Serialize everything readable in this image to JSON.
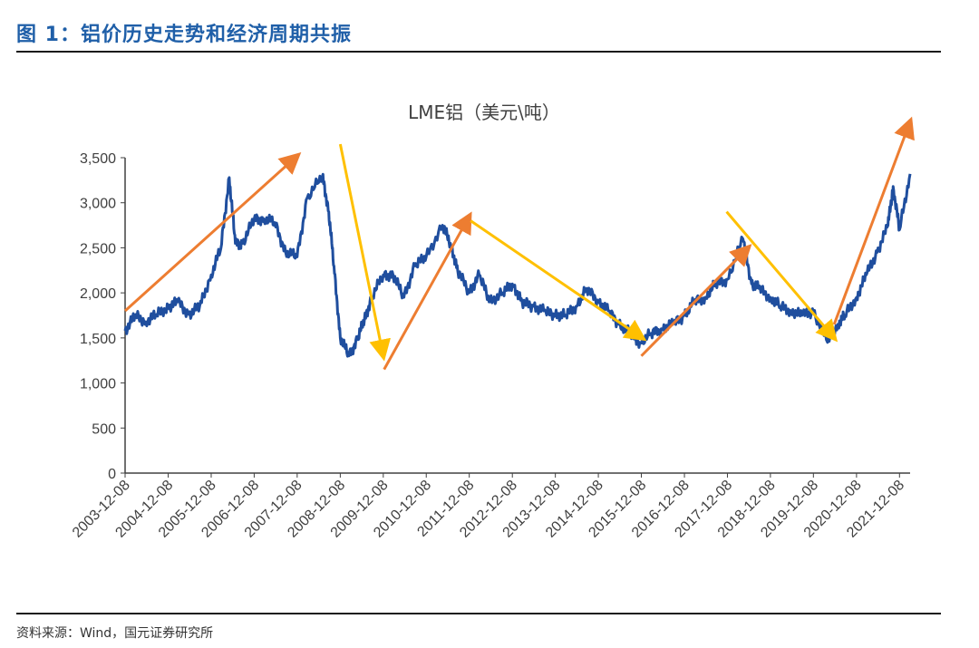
{
  "figure": {
    "title": "图 1：铝价历史走势和经济周期共振",
    "source": "资料来源：Wind，国元证券研究所"
  },
  "chart_data": {
    "type": "line",
    "title": "LME铝（美元\\吨）",
    "xlabel": "",
    "ylabel": "",
    "ylim": [
      0,
      3500
    ],
    "yticks": [
      0,
      500,
      1000,
      1500,
      2000,
      2500,
      3000,
      3500
    ],
    "ytick_labels": [
      "0",
      "500",
      "1,000",
      "1,500",
      "2,000",
      "2,500",
      "3,000",
      "3,500"
    ],
    "xlim": [
      "2003-12-08",
      "2022-03-08"
    ],
    "xtick_labels": [
      "2003-12-08",
      "2004-12-08",
      "2005-12-08",
      "2006-12-08",
      "2007-12-08",
      "2008-12-08",
      "2009-12-08",
      "2010-12-08",
      "2011-12-08",
      "2012-12-08",
      "2013-12-08",
      "2014-12-08",
      "2015-12-08",
      "2016-12-08",
      "2017-12-08",
      "2018-12-08",
      "2019-12-08",
      "2020-12-08",
      "2021-12-08"
    ],
    "grid": false,
    "legend": "none",
    "series": [
      {
        "name": "LME铝",
        "color": "#1f4e9e",
        "x": [
          "2003-12-08",
          "2004-03-01",
          "2004-06-01",
          "2004-09-01",
          "2004-12-08",
          "2005-03-01",
          "2005-06-01",
          "2005-09-01",
          "2005-12-08",
          "2006-03-01",
          "2006-05-10",
          "2006-07-01",
          "2006-09-01",
          "2006-12-08",
          "2007-03-01",
          "2007-06-01",
          "2007-09-01",
          "2007-12-08",
          "2008-03-01",
          "2008-07-10",
          "2008-09-01",
          "2008-10-15",
          "2008-12-08",
          "2009-02-20",
          "2009-05-01",
          "2009-07-01",
          "2009-09-01",
          "2009-12-08",
          "2010-03-01",
          "2010-06-01",
          "2010-09-01",
          "2010-12-08",
          "2011-04-25",
          "2011-07-01",
          "2011-09-01",
          "2011-12-08",
          "2012-03-01",
          "2012-06-01",
          "2012-09-15",
          "2012-12-08",
          "2013-03-01",
          "2013-06-01",
          "2013-09-01",
          "2013-12-08",
          "2014-03-01",
          "2014-06-01",
          "2014-09-01",
          "2014-12-08",
          "2015-03-01",
          "2015-06-01",
          "2015-09-01",
          "2015-11-25",
          "2016-03-01",
          "2016-06-01",
          "2016-09-01",
          "2016-12-08",
          "2017-03-01",
          "2017-06-01",
          "2017-09-01",
          "2017-12-08",
          "2018-04-18",
          "2018-07-01",
          "2018-09-01",
          "2018-12-08",
          "2019-03-01",
          "2019-06-01",
          "2019-09-01",
          "2019-12-08",
          "2020-04-06",
          "2020-07-01",
          "2020-09-01",
          "2020-12-08",
          "2021-03-01",
          "2021-06-01",
          "2021-09-01",
          "2021-10-15",
          "2021-12-08",
          "2022-03-08"
        ],
        "values": [
          1580,
          1750,
          1680,
          1760,
          1840,
          1900,
          1760,
          1850,
          2200,
          2500,
          3280,
          2550,
          2550,
          2820,
          2820,
          2780,
          2450,
          2400,
          3050,
          3300,
          2900,
          2300,
          1500,
          1300,
          1480,
          1700,
          1950,
          2200,
          2200,
          1950,
          2300,
          2400,
          2750,
          2550,
          2250,
          2000,
          2200,
          1900,
          2000,
          2100,
          1900,
          1850,
          1800,
          1750,
          1750,
          1850,
          2050,
          1900,
          1800,
          1650,
          1550,
          1450,
          1550,
          1600,
          1650,
          1750,
          1900,
          1950,
          2100,
          2150,
          2600,
          2100,
          2050,
          1950,
          1850,
          1800,
          1750,
          1800,
          1450,
          1650,
          1750,
          1950,
          2200,
          2450,
          2750,
          3180,
          2700,
          3320
        ]
      }
    ],
    "annotations": [
      {
        "type": "arrow",
        "color": "#ed7d31",
        "x": [
          "2003-12-08",
          "2007-12-08"
        ],
        "y": [
          1800,
          3520
        ]
      },
      {
        "type": "arrow",
        "color": "#ffc000",
        "x": [
          "2008-12-08",
          "2009-12-08"
        ],
        "y": [
          3650,
          1300
        ]
      },
      {
        "type": "arrow",
        "color": "#ed7d31",
        "x": [
          "2009-12-15",
          "2011-12-08"
        ],
        "y": [
          1150,
          2850
        ]
      },
      {
        "type": "arrow",
        "color": "#ffc000",
        "x": [
          "2011-12-20",
          "2015-12-15"
        ],
        "y": [
          2800,
          1500
        ]
      },
      {
        "type": "arrow",
        "color": "#ed7d31",
        "x": [
          "2015-12-08",
          "2018-06-01"
        ],
        "y": [
          1300,
          2500
        ]
      },
      {
        "type": "arrow",
        "color": "#ffc000",
        "x": [
          "2017-12-01",
          "2020-06-01"
        ],
        "y": [
          2900,
          1500
        ]
      },
      {
        "type": "arrow",
        "color": "#ed7d31",
        "x": [
          "2020-06-01",
          "2022-03-08"
        ],
        "y": [
          1650,
          3900
        ]
      }
    ]
  }
}
